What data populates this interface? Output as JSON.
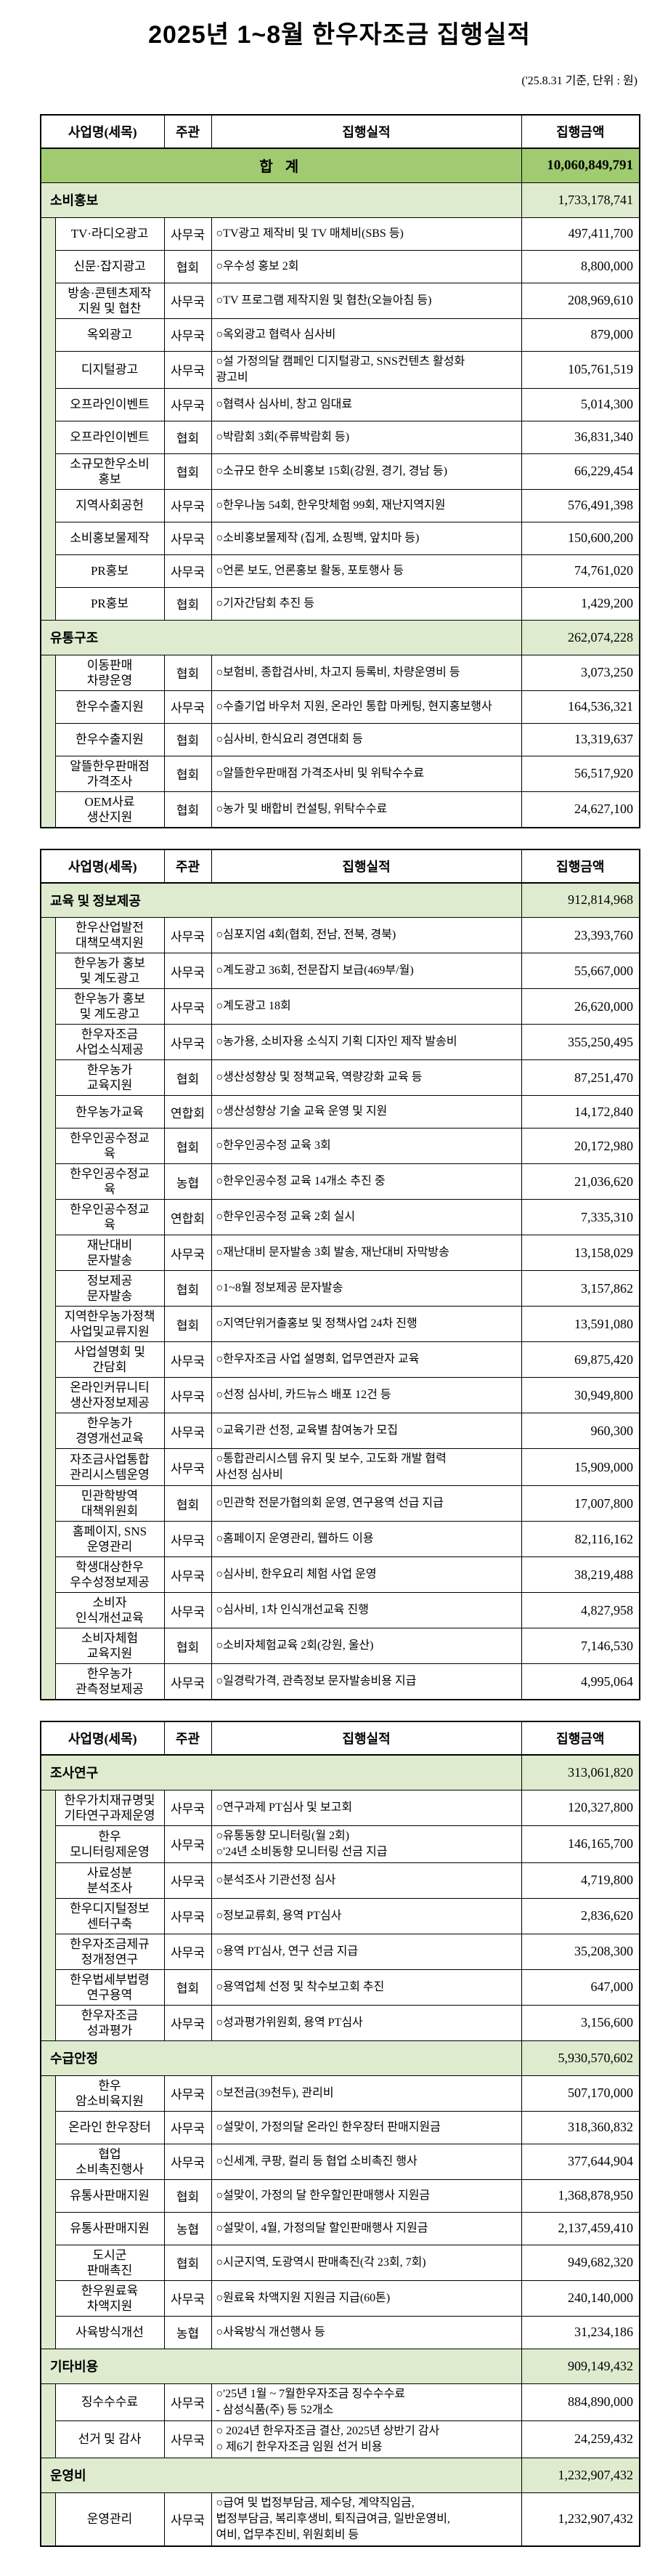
{
  "document": {
    "title": "2025년 1~8월 한우자조금 집행실적",
    "date_note": "('25.8.31 기준, 단위 : 원)"
  },
  "columns": {
    "name": "사업명(세목)",
    "org": "주관",
    "performance": "집행실적",
    "amount": "집행금액"
  },
  "grand_total": {
    "label": "합 계",
    "amount": "10,060,849,791"
  },
  "colors": {
    "total_row_bg": "#A0CB70",
    "section_row_bg": "#DEEBCF",
    "border": "#000000"
  },
  "tables": [
    {
      "has_total": true,
      "sections": [
        {
          "name": "소비홍보",
          "amount": "1,733,178,741",
          "rows": [
            {
              "name": "TV·라디오광고",
              "org": "사무국",
              "desc": "○TV광고 제작비 및 TV 매체비(SBS 등)",
              "amount": "497,411,700"
            },
            {
              "name": "신문·잡지광고",
              "org": "협회",
              "desc": "○우수성 홍보 2회",
              "amount": "8,800,000"
            },
            {
              "name": "방송·콘텐츠제작\n지원 및 협찬",
              "org": "사무국",
              "desc": "○TV 프로그램 제작지원 및 협찬(오늘아침 등)",
              "amount": "208,969,610"
            },
            {
              "name": "옥외광고",
              "org": "사무국",
              "desc": "○옥외광고 협력사 심사비",
              "amount": "879,000"
            },
            {
              "name": "디지털광고",
              "org": "사무국",
              "desc": "○설 가정의달 캠페인 디지털광고, SNS컨텐츠 활성화\n광고비",
              "amount": "105,761,519"
            },
            {
              "name": "오프라인이벤트",
              "org": "사무국",
              "desc": "○협력사 심사비, 창고 임대료",
              "amount": "5,014,300"
            },
            {
              "name": "오프라인이벤트",
              "org": "협회",
              "desc": "○박람회 3회(주류박람회 등)",
              "amount": "36,831,340"
            },
            {
              "name": "소규모한우소비\n홍보",
              "org": "협회",
              "desc": "○소규모 한우 소비홍보 15회(강원, 경기, 경남 등)",
              "amount": "66,229,454"
            },
            {
              "name": "지역사회공헌",
              "org": "사무국",
              "desc": "○한우나눔 54회, 한우맛체험 99회, 재난지역지원",
              "amount": "576,491,398"
            },
            {
              "name": "소비홍보물제작",
              "org": "사무국",
              "desc": "○소비홍보물제작 (집게, 쇼핑백, 앞치마 등)",
              "amount": "150,600,200"
            },
            {
              "name": "PR홍보",
              "org": "사무국",
              "desc": "○언론 보도, 언론홍보 활동, 포토행사 등",
              "amount": "74,761,020"
            },
            {
              "name": "PR홍보",
              "org": "협회",
              "desc": "○기자간담회 추진 등",
              "amount": "1,429,200"
            }
          ]
        },
        {
          "name": "유통구조",
          "amount": "262,074,228",
          "rows": [
            {
              "name": "이동판매\n차량운영",
              "org": "협회",
              "desc": "○보험비, 종합검사비, 차고지 등록비, 차량운영비 등",
              "amount": "3,073,250"
            },
            {
              "name": "한우수출지원",
              "org": "사무국",
              "desc": "○수출기업 바우처 지원, 온라인 통합 마케팅, 현지홍보행사",
              "amount": "164,536,321"
            },
            {
              "name": "한우수출지원",
              "org": "협회",
              "desc": "○심사비, 한식요리 경연대회 등",
              "amount": "13,319,637"
            },
            {
              "name": "알뜰한우판매점\n가격조사",
              "org": "협회",
              "desc": "○알뜰한우판매점 가격조사비 및 위탁수수료",
              "amount": "56,517,920"
            },
            {
              "name": "OEM사료\n생산지원",
              "org": "협회",
              "desc": "○농가 및 배합비 컨설팅, 위탁수수료",
              "amount": "24,627,100"
            }
          ]
        }
      ]
    },
    {
      "has_total": false,
      "sections": [
        {
          "name": "교육 및 정보제공",
          "amount": "912,814,968",
          "rows": [
            {
              "name": "한우산업발전\n대책모색지원",
              "org": "사무국",
              "desc": "○심포지엄 4회(협회, 전남, 전북, 경북)",
              "amount": "23,393,760"
            },
            {
              "name": "한우농가 홍보\n및 계도광고",
              "org": "사무국",
              "desc": "○계도광고 36회, 전문잡지 보급(469부/월)",
              "amount": "55,667,000"
            },
            {
              "name": "한우농가 홍보\n및 계도광고",
              "org": "사무국",
              "desc": "○계도광고 18회",
              "amount": "26,620,000"
            },
            {
              "name": "한우자조금\n사업소식제공",
              "org": "사무국",
              "desc": "○농가용, 소비자용 소식지 기획 디자인 제작 발송비",
              "amount": "355,250,495"
            },
            {
              "name": "한우농가\n교육지원",
              "org": "협회",
              "desc": "○생산성향상 및 정책교육, 역량강화 교육 등",
              "amount": "87,251,470"
            },
            {
              "name": "한우농가교육",
              "org": "연합회",
              "desc": "○생산성향상 기술 교육 운영 및 지원",
              "amount": "14,172,840"
            },
            {
              "name": "한우인공수정교\n육",
              "org": "협회",
              "desc": "○한우인공수정 교육 3회",
              "amount": "20,172,980"
            },
            {
              "name": "한우인공수정교\n육",
              "org": "농협",
              "desc": "○한우인공수정 교육 14개소 추진 중",
              "amount": "21,036,620"
            },
            {
              "name": "한우인공수정교\n육",
              "org": "연합회",
              "desc": "○한우인공수정 교육 2회 실시",
              "amount": "7,335,310"
            },
            {
              "name": "재난대비\n문자발송",
              "org": "사무국",
              "desc": "○재난대비 문자발송 3회 발송, 재난대비 자막방송",
              "amount": "13,158,029"
            },
            {
              "name": "정보제공\n문자발송",
              "org": "협회",
              "desc": "○1~8월 정보제공 문자발송",
              "amount": "3,157,862"
            },
            {
              "name": "지역한우농가정책\n사업및교류지원",
              "org": "협회",
              "desc": "○지역단위거출홍보 및 정책사업 24차 진행",
              "amount": "13,591,080"
            },
            {
              "name": "사업설명회 및\n간담회",
              "org": "사무국",
              "desc": "○한우자조금 사업 설명회, 업무연관자 교육",
              "amount": "69,875,420"
            },
            {
              "name": "온라인커뮤니티\n생산자정보제공",
              "org": "사무국",
              "desc": "○선정 심사비, 카드뉴스 배포 12건 등",
              "amount": "30,949,800"
            },
            {
              "name": "한우농가\n경영개선교육",
              "org": "사무국",
              "desc": "○교육기관 선정, 교육별 참여농가 모집",
              "amount": "960,300"
            },
            {
              "name": "자조금사업통합\n관리시스템운영",
              "org": "사무국",
              "desc": "○통합관리시스템 유지 및 보수, 고도화 개발 협력\n사선정 심사비",
              "amount": "15,909,000"
            },
            {
              "name": "민관학방역\n대책위원회",
              "org": "협회",
              "desc": "○민관학 전문가협의회 운영, 연구용역 선급 지급",
              "amount": "17,007,800"
            },
            {
              "name": "홈페이지, SNS\n운영관리",
              "org": "사무국",
              "desc": "○홈페이지 운영관리, 웹하드 이용",
              "amount": "82,116,162"
            },
            {
              "name": "학생대상한우\n우수성정보제공",
              "org": "사무국",
              "desc": "○심사비, 한우요리 체험 사업 운영",
              "amount": "38,219,488"
            },
            {
              "name": "소비자\n인식개선교육",
              "org": "사무국",
              "desc": "○심사비, 1차 인식개선교육 진행",
              "amount": "4,827,958"
            },
            {
              "name": "소비자체험\n교육지원",
              "org": "협회",
              "desc": "○소비자체험교육 2회(강원, 울산)",
              "amount": "7,146,530"
            },
            {
              "name": "한우농가\n관측정보제공",
              "org": "사무국",
              "desc": "○일경락가격, 관측정보 문자발송비용 지급",
              "amount": "4,995,064"
            }
          ]
        }
      ]
    },
    {
      "has_total": false,
      "sections": [
        {
          "name": "조사연구",
          "amount": "313,061,820",
          "rows": [
            {
              "name": "한우가치재규명및\n기타연구과제운영",
              "org": "사무국",
              "desc": "○연구과제 PT심사 및 보고회",
              "amount": "120,327,800"
            },
            {
              "name": "한우\n모니터링제운영",
              "org": "사무국",
              "desc": "○유통동향 모니터링(월 2회)\n○'24년 소비동향 모니터링 선금 지급",
              "amount": "146,165,700"
            },
            {
              "name": "사료성분\n분석조사",
              "org": "사무국",
              "desc": "○분석조사 기관선정 심사",
              "amount": "4,719,800"
            },
            {
              "name": "한우디지털정보\n센터구축",
              "org": "사무국",
              "desc": "○정보교류회, 용역 PT심사",
              "amount": "2,836,620"
            },
            {
              "name": "한우자조금제규\n정개정연구",
              "org": "사무국",
              "desc": "○용역 PT심사, 연구 선금 지급",
              "amount": "35,208,300"
            },
            {
              "name": "한우법세부법령\n연구용역",
              "org": "협회",
              "desc": "○용역업체 선정 및 착수보고회 추진",
              "amount": "647,000"
            },
            {
              "name": "한우자조금\n성과평가",
              "org": "사무국",
              "desc": "○성과평가위원회, 용역 PT심사",
              "amount": "3,156,600"
            }
          ]
        },
        {
          "name": "수급안정",
          "amount": "5,930,570,602",
          "rows": [
            {
              "name": "한우\n암소비육지원",
              "org": "사무국",
              "desc": "○보전금(39천두), 관리비",
              "amount": "507,170,000"
            },
            {
              "name": "온라인 한우장터",
              "org": "사무국",
              "desc": "○설맞이, 가정의달 온라인 한우장터 판매지원금",
              "amount": "318,360,832"
            },
            {
              "name": "협업\n소비촉진행사",
              "org": "사무국",
              "desc": "○신세계, 쿠팡, 컬리 등 협업 소비촉진 행사",
              "amount": "377,644,904"
            },
            {
              "name": "유통사판매지원",
              "org": "협회",
              "desc": "○설맞이, 가정의 달 한우할인판매행사 지원금",
              "amount": "1,368,878,950"
            },
            {
              "name": "유통사판매지원",
              "org": "농협",
              "desc": "○설맞이, 4월, 가정의달 할인판매행사 지원금",
              "amount": "2,137,459,410"
            },
            {
              "name": "도시군\n판매촉진",
              "org": "협회",
              "desc": "○시군지역, 도광역시 판매촉진(각 23회, 7회)",
              "amount": "949,682,320"
            },
            {
              "name": "한우원료육\n차액지원",
              "org": "사무국",
              "desc": "○원료육 차액지원 지원금 지급(60톤)",
              "amount": "240,140,000"
            },
            {
              "name": "사육방식개선",
              "org": "농협",
              "desc": "○사육방식 개선행사 등",
              "amount": "31,234,186"
            }
          ]
        },
        {
          "name": "기타비용",
          "amount": "909,149,432",
          "rows": [
            {
              "name": "징수수수료",
              "org": "사무국",
              "desc": "○'25년 1월 ~ 7월한우자조금 징수수수료\n - 삼성식품(주) 등 52개소",
              "amount": "884,890,000"
            },
            {
              "name": "선거 및 감사",
              "org": "사무국",
              "desc": "○ 2024년 한우자조금 결산, 2025년 상반기 감사\n○ 제6기 한우자조금 임원 선거 비용",
              "amount": "24,259,432"
            }
          ]
        },
        {
          "name": "운영비",
          "amount": "1,232,907,432",
          "rows": [
            {
              "name": "운영관리",
              "org": "사무국",
              "desc": "○급여 및 법정부담금, 제수당, 계약직임금,\n법정부담금, 복리후생비, 퇴직급여금, 일반운영비,\n여비, 업무추진비, 위원회비 등",
              "amount": "1,232,907,432"
            }
          ]
        }
      ]
    }
  ]
}
